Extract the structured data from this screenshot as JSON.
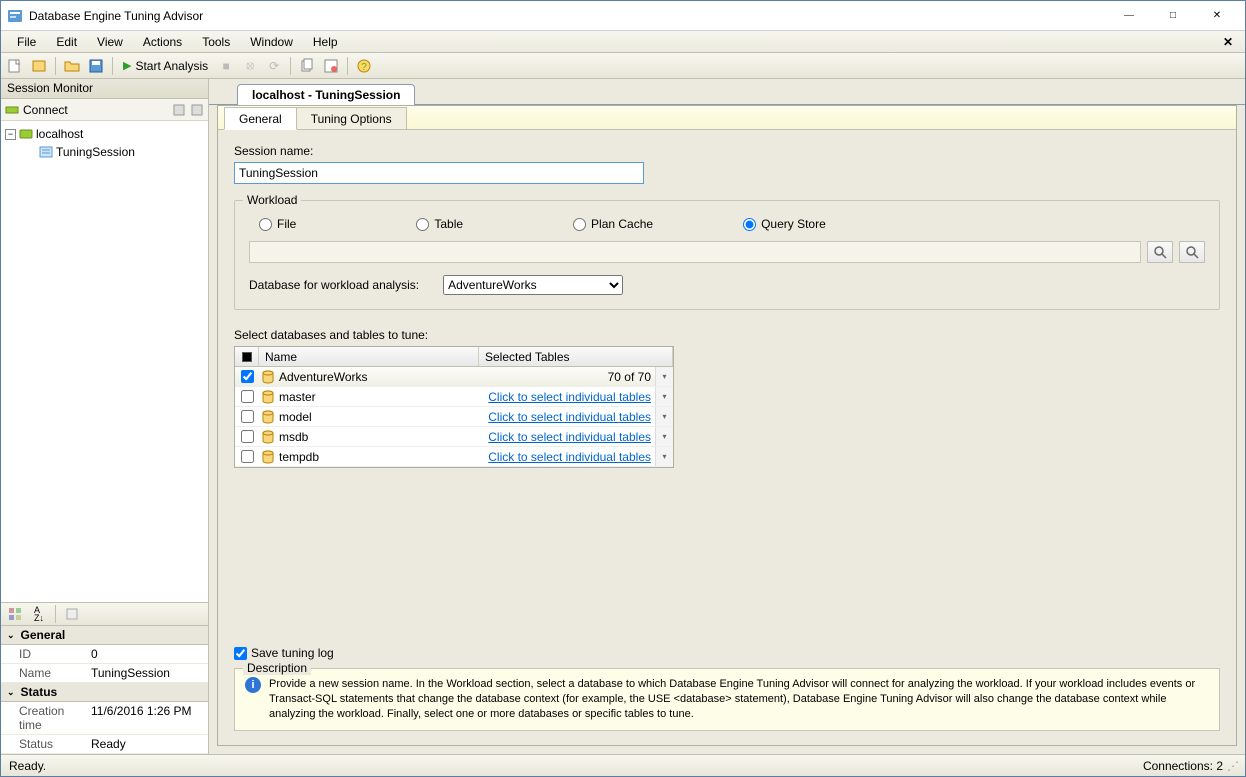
{
  "window": {
    "title": "Database Engine Tuning Advisor"
  },
  "menu": {
    "items": [
      "File",
      "Edit",
      "View",
      "Actions",
      "Tools",
      "Window",
      "Help"
    ]
  },
  "toolbar": {
    "start_label": "Start Analysis"
  },
  "session_monitor": {
    "title": "Session Monitor",
    "connect_label": "Connect",
    "server": "localhost",
    "session": "TuningSession"
  },
  "properties": {
    "general_header": "General",
    "id_label": "ID",
    "id_value": "0",
    "name_label": "Name",
    "name_value": "TuningSession",
    "status_header": "Status",
    "creation_label": "Creation time",
    "creation_value": "11/6/2016 1:26 PM",
    "status_label": "Status",
    "status_value": "Ready"
  },
  "doc": {
    "tab_title": "localhost - TuningSession",
    "tabs": {
      "general": "General",
      "options": "Tuning Options"
    },
    "session_name_label": "Session name:",
    "session_name_value": "TuningSession",
    "workload_legend": "Workload",
    "radios": {
      "file": "File",
      "table": "Table",
      "plan": "Plan Cache",
      "query": "Query Store"
    },
    "db_workload_label": "Database for workload analysis:",
    "db_workload_value": "AdventureWorks",
    "select_db_label": "Select databases and tables to tune:",
    "grid": {
      "col_name": "Name",
      "col_selected": "Selected Tables",
      "rows": [
        {
          "checked": true,
          "name": "AdventureWorks",
          "selected": "70 of 70",
          "link": false
        },
        {
          "checked": false,
          "name": "master",
          "selected": "Click to select individual tables",
          "link": true
        },
        {
          "checked": false,
          "name": "model",
          "selected": "Click to select individual tables",
          "link": true
        },
        {
          "checked": false,
          "name": "msdb",
          "selected": "Click to select individual tables",
          "link": true
        },
        {
          "checked": false,
          "name": "tempdb",
          "selected": "Click to select individual tables",
          "link": true
        }
      ]
    },
    "save_log_label": "Save tuning log",
    "description_legend": "Description",
    "description_text": "Provide a new session name. In the Workload section, select a database to which Database Engine Tuning Advisor will connect for analyzing the workload. If your workload includes events or Transact-SQL statements that change the database context (for example, the USE <database> statement), Database Engine Tuning Advisor will also change the database context while analyzing the workload. Finally, select one or more databases or specific tables to tune."
  },
  "status": {
    "ready": "Ready.",
    "connections": "Connections: 2"
  }
}
